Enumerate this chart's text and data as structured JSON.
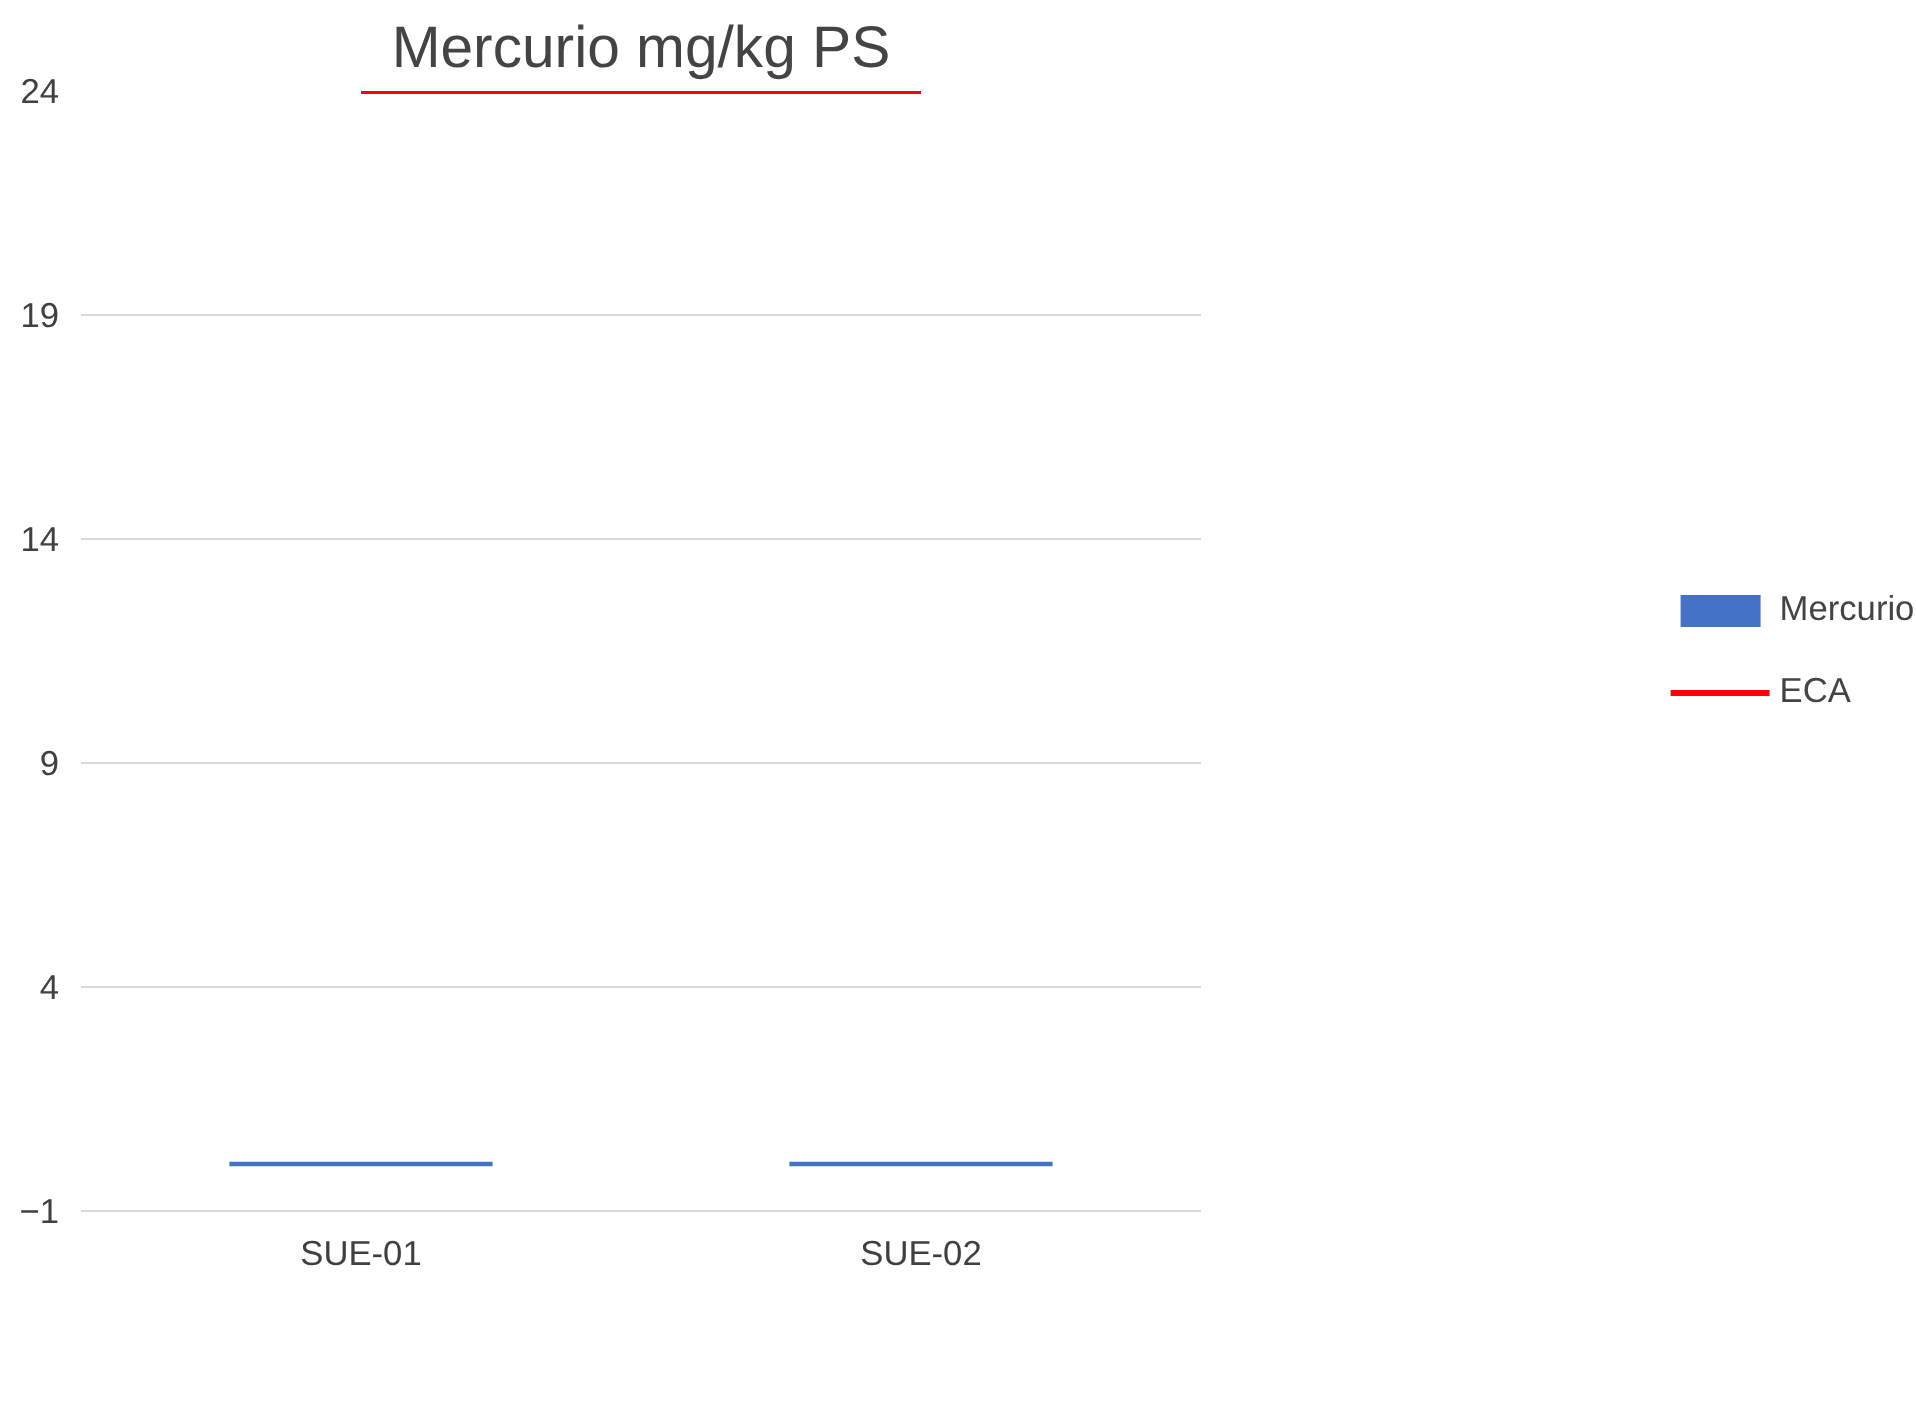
{
  "chart_data": {
    "type": "bar",
    "title": "Mercurio mg/kg PS",
    "categories": [
      "SUE-01",
      "SUE-02"
    ],
    "series": [
      {
        "name": "Mercurio",
        "color": "#4472c4",
        "values": [
          0.1,
          0.1
        ]
      },
      {
        "name": "ECA",
        "type": "line",
        "color": "#ff0000",
        "values": [
          24,
          24
        ]
      }
    ],
    "ylim": [
      -1,
      24
    ],
    "yticks": [
      -1,
      4,
      9,
      14,
      19,
      24
    ],
    "grid": "y",
    "legend": "right"
  }
}
